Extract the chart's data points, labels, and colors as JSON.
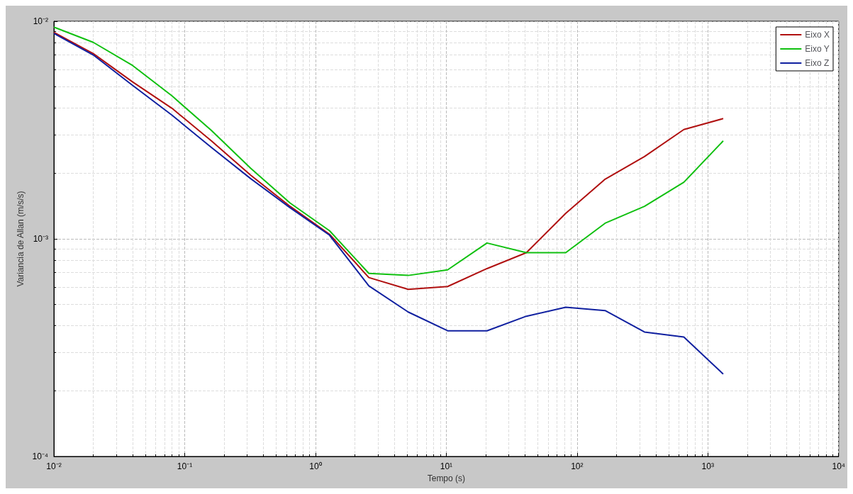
{
  "chart_data": {
    "type": "line",
    "xlabel": "Tempo (s)",
    "ylabel": "Variancia de Allan (m/s/s)",
    "log": "xy",
    "grid": true,
    "legend": "top right",
    "marker": "none",
    "line_style": "solid",
    "x": [
      0.01,
      0.02,
      0.04,
      0.08,
      0.16,
      0.32,
      0.64,
      1.28,
      2.56,
      5.12,
      10.24,
      20.48,
      40.96,
      81.92,
      163.84,
      327.68,
      655.36,
      1310.72
    ],
    "xlim": [
      0.01,
      10000
    ],
    "xticks": [
      {
        "value": 0.01,
        "label": "10⁻²"
      },
      {
        "value": 0.1,
        "label": "10⁻¹"
      },
      {
        "value": 1,
        "label": "10⁰"
      },
      {
        "value": 10,
        "label": "10¹"
      },
      {
        "value": 100,
        "label": "10²"
      },
      {
        "value": 1000,
        "label": "10³"
      },
      {
        "value": 10000,
        "label": "10⁴"
      }
    ],
    "ylim": [
      0.0001,
      0.01
    ],
    "yticks": [
      {
        "value": 0.0001,
        "label": "10⁻⁴"
      },
      {
        "value": 0.001,
        "label": "10⁻³"
      },
      {
        "value": 0.01,
        "label": "10⁻²"
      }
    ],
    "series": [
      {
        "name": "Eixo X",
        "color": "#b01010",
        "values": [
          0.0089,
          0.0071,
          0.00526,
          0.00398,
          0.00282,
          0.00196,
          0.00141,
          0.00105,
          0.000664,
          0.000586,
          0.000604,
          0.00073,
          0.000864,
          0.00131,
          0.00188,
          0.00239,
          0.00318,
          0.00357
        ]
      },
      {
        "name": "Eixo Y",
        "color": "#10c010",
        "values": [
          0.0094,
          0.008,
          0.00626,
          0.00454,
          0.00315,
          0.00211,
          0.00146,
          0.00109,
          0.000694,
          0.000679,
          0.00072,
          0.000957,
          0.000864,
          0.000864,
          0.00118,
          0.00141,
          0.00182,
          0.00282
        ]
      },
      {
        "name": "Eixo Z",
        "color": "#1020a0",
        "values": [
          0.0088,
          0.007,
          0.00507,
          0.0037,
          0.00263,
          0.00189,
          0.00139,
          0.00104,
          0.000608,
          0.000461,
          0.000378,
          0.000378,
          0.000441,
          0.000485,
          0.000468,
          0.000373,
          0.000354,
          0.000239
        ]
      }
    ]
  }
}
